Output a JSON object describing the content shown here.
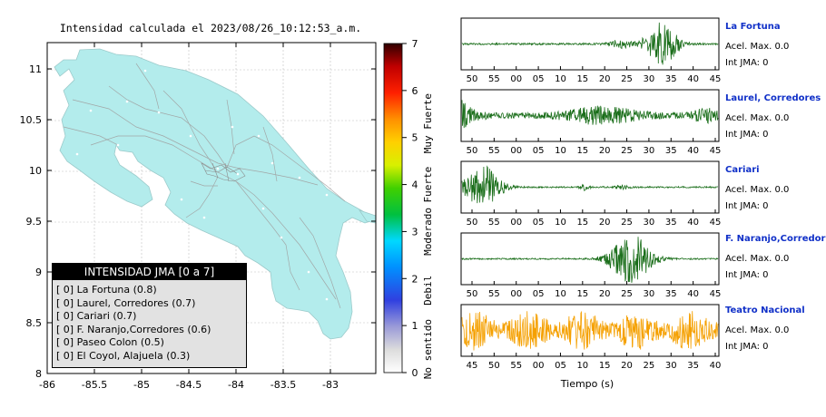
{
  "map_title": "Intensidad calculada el 2023/08/26_10:12:53_a.m.",
  "map": {
    "x_ticks": [
      "-86",
      "-85.5",
      "-85",
      "-84.5",
      "-84",
      "-83.5",
      "-83"
    ],
    "y_ticks": [
      "11",
      "10.5",
      "10",
      "9.5",
      "9",
      "8.5",
      "8"
    ],
    "xlim": [
      -86,
      -82.5
    ],
    "ylim": [
      8,
      11.3
    ],
    "land_color": "#b3ecec"
  },
  "colorbar": {
    "ticks": [
      "0",
      "1",
      "2",
      "3",
      "4",
      "5",
      "6",
      "7"
    ],
    "categories": [
      "No sentido",
      "Debil",
      "Moderado",
      "Fuerte",
      "Muy Fuerte"
    ]
  },
  "legend": {
    "title": "INTENSIDAD JMA [0 a 7]",
    "rows": [
      "[ 0] La Fortuna (0.8)",
      "[ 0] Laurel, Corredores (0.7)",
      "[ 0] Cariari (0.7)",
      "[ 0] F. Naranjo,Corredores (0.6)",
      "[ 0] Paseo Colon (0.5)",
      "[ 0] El Coyol, Alajuela (0.3)"
    ]
  },
  "stations": [
    {
      "name": "La Fortuna",
      "acc": "Acel. Max. 0.0",
      "int": "Int JMA: 0",
      "color": "#1a6e1a",
      "ticks": [
        "50",
        "55",
        "00",
        "05",
        "10",
        "15",
        "20",
        "25",
        "30",
        "35",
        "40",
        "45"
      ]
    },
    {
      "name": "Laurel, Corredores",
      "acc": "Acel. Max. 0.0",
      "int": "Int JMA: 0",
      "color": "#1a6e1a",
      "ticks": [
        "50",
        "55",
        "00",
        "05",
        "10",
        "15",
        "20",
        "25",
        "30",
        "35",
        "40",
        "45"
      ]
    },
    {
      "name": "Cariari",
      "acc": "Acel. Max. 0.0",
      "int": "Int JMA: 0",
      "color": "#1a6e1a",
      "ticks": [
        "50",
        "55",
        "00",
        "05",
        "10",
        "15",
        "20",
        "25",
        "30",
        "35",
        "40",
        "45"
      ]
    },
    {
      "name": "F. Naranjo,Corredores",
      "acc": "Acel. Max. 0.0",
      "int": "Int JMA: 0",
      "color": "#1a6e1a",
      "ticks": [
        "50",
        "55",
        "00",
        "05",
        "10",
        "15",
        "20",
        "25",
        "30",
        "35",
        "40",
        "45"
      ]
    },
    {
      "name": "Teatro Nacional",
      "acc": "Acel. Max. 0.0",
      "int": "Int JMA: 0",
      "color": "#f5a000",
      "ticks": [
        "45",
        "50",
        "55",
        "00",
        "05",
        "10",
        "15",
        "20",
        "25",
        "30",
        "35",
        "40"
      ]
    }
  ],
  "xlabel": "Tiempo (s)",
  "chart_data": [
    {
      "type": "heatmap",
      "title": "Intensidad calculada el 2023/08/26_10:12:53_a.m.",
      "xlim": [
        -86,
        -82.5
      ],
      "ylim": [
        8,
        11.3
      ],
      "colorbar_range": [
        0,
        7
      ],
      "legend": "bottom-left"
    },
    {
      "type": "line",
      "xlabel": "Tiempo (s)",
      "series": [
        {
          "name": "La Fortuna",
          "max_acc": 0.0,
          "int_jma": 0
        },
        {
          "name": "Laurel, Corredores",
          "max_acc": 0.0,
          "int_jma": 0
        },
        {
          "name": "Cariari",
          "max_acc": 0.0,
          "int_jma": 0
        },
        {
          "name": "F. Naranjo,Corredores",
          "max_acc": 0.0,
          "int_jma": 0
        },
        {
          "name": "Teatro Nacional",
          "max_acc": 0.0,
          "int_jma": 0
        }
      ]
    }
  ]
}
